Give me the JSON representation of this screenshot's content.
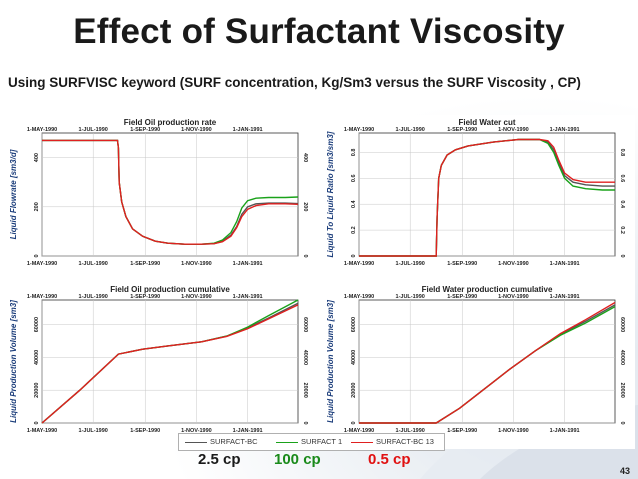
{
  "slide": {
    "title": "Effect of Surfactant Viscosity",
    "subtitle": "Using SURFVISC keyword (SURF concentration, Kg/Sm3 versus the SURF Viscosity , CP)",
    "page_number": "43"
  },
  "legend": {
    "entries": [
      {
        "name": "SURFACT-BC",
        "color": "#555555"
      },
      {
        "name": "SURFACT 1",
        "color": "#1aa21a"
      },
      {
        "name": "SURFACT-BC 13",
        "color": "#e02020"
      }
    ]
  },
  "viscosity_labels": [
    {
      "text": "2.5 cp",
      "color": "#1a1a1a"
    },
    {
      "text": "100 cp",
      "color": "#1a8a1a"
    },
    {
      "text": "0.5 cp",
      "color": "#e01010"
    }
  ],
  "chart_data": [
    {
      "type": "line",
      "title": "Field Oil production rate",
      "ylabel": "Liquid Flowrate [sm3/d]",
      "x_ticks": [
        "1-MAY-1990",
        "1-JUL-1990",
        "1-SEP-1990",
        "1-NOV-1990",
        "1-JAN-1991"
      ],
      "x_tick_values": [
        0,
        61,
        123,
        184,
        245
      ],
      "xlim": [
        0,
        305
      ],
      "y_ticks": [
        "0",
        "200",
        "400"
      ],
      "y_tick_values": [
        0,
        200,
        400
      ],
      "ylim": [
        0,
        500
      ],
      "grid": true,
      "series": [
        {
          "name": "SURFACT-BC",
          "points": [
            [
              0,
              470
            ],
            [
              90,
              470
            ],
            [
              91,
              440
            ],
            [
              92,
              300
            ],
            [
              95,
              220
            ],
            [
              100,
              160
            ],
            [
              108,
              110
            ],
            [
              120,
              80
            ],
            [
              135,
              60
            ],
            [
              150,
              52
            ],
            [
              170,
              48
            ],
            [
              190,
              48
            ],
            [
              205,
              50
            ],
            [
              215,
              60
            ],
            [
              225,
              85
            ],
            [
              232,
              120
            ],
            [
              238,
              170
            ],
            [
              245,
              200
            ],
            [
              255,
              212
            ],
            [
              270,
              215
            ],
            [
              290,
              215
            ],
            [
              305,
              213
            ]
          ]
        },
        {
          "name": "SURFACT 1",
          "points": [
            [
              0,
              470
            ],
            [
              90,
              470
            ],
            [
              91,
              440
            ],
            [
              92,
              300
            ],
            [
              95,
              220
            ],
            [
              100,
              160
            ],
            [
              108,
              110
            ],
            [
              120,
              80
            ],
            [
              135,
              60
            ],
            [
              150,
              52
            ],
            [
              170,
              48
            ],
            [
              190,
              48
            ],
            [
              205,
              52
            ],
            [
              215,
              65
            ],
            [
              225,
              95
            ],
            [
              232,
              140
            ],
            [
              238,
              195
            ],
            [
              245,
              225
            ],
            [
              255,
              235
            ],
            [
              270,
              238
            ],
            [
              290,
              238
            ],
            [
              305,
              240
            ]
          ]
        },
        {
          "name": "SURFACT-BC 13",
          "points": [
            [
              0,
              470
            ],
            [
              90,
              470
            ],
            [
              91,
              440
            ],
            [
              92,
              300
            ],
            [
              95,
              220
            ],
            [
              100,
              160
            ],
            [
              108,
              110
            ],
            [
              120,
              80
            ],
            [
              135,
              60
            ],
            [
              150,
              52
            ],
            [
              170,
              48
            ],
            [
              190,
              48
            ],
            [
              205,
              50
            ],
            [
              215,
              58
            ],
            [
              225,
              80
            ],
            [
              232,
              115
            ],
            [
              238,
              160
            ],
            [
              245,
              190
            ],
            [
              255,
              205
            ],
            [
              270,
              212
            ],
            [
              290,
              212
            ],
            [
              305,
              210
            ]
          ]
        }
      ]
    },
    {
      "type": "line",
      "title": "Field Water cut",
      "ylabel": "Liquid To Liquid Ratio [sm3/sm3]",
      "x_ticks": [
        "1-MAY-1990",
        "1-JUL-1990",
        "1-SEP-1990",
        "1-NOV-1990",
        "1-JAN-1991"
      ],
      "x_tick_values": [
        0,
        61,
        123,
        184,
        245
      ],
      "xlim": [
        0,
        305
      ],
      "y_ticks": [
        "0",
        "0.2",
        "0.4",
        "0.6",
        "0.8"
      ],
      "y_tick_values": [
        0,
        0.2,
        0.4,
        0.6,
        0.8
      ],
      "ylim": [
        0,
        0.95
      ],
      "grid": true,
      "series": [
        {
          "name": "SURFACT-BC",
          "points": [
            [
              0,
              0
            ],
            [
              92,
              0
            ],
            [
              93,
              0.3
            ],
            [
              95,
              0.6
            ],
            [
              98,
              0.7
            ],
            [
              105,
              0.78
            ],
            [
              115,
              0.82
            ],
            [
              130,
              0.85
            ],
            [
              160,
              0.88
            ],
            [
              190,
              0.9
            ],
            [
              215,
              0.9
            ],
            [
              225,
              0.88
            ],
            [
              232,
              0.82
            ],
            [
              238,
              0.72
            ],
            [
              245,
              0.62
            ],
            [
              255,
              0.57
            ],
            [
              270,
              0.55
            ],
            [
              290,
              0.54
            ],
            [
              305,
              0.54
            ]
          ]
        },
        {
          "name": "SURFACT 1",
          "points": [
            [
              0,
              0
            ],
            [
              92,
              0
            ],
            [
              93,
              0.3
            ],
            [
              95,
              0.6
            ],
            [
              98,
              0.7
            ],
            [
              105,
              0.78
            ],
            [
              115,
              0.82
            ],
            [
              130,
              0.85
            ],
            [
              160,
              0.88
            ],
            [
              190,
              0.9
            ],
            [
              215,
              0.9
            ],
            [
              225,
              0.87
            ],
            [
              232,
              0.8
            ],
            [
              238,
              0.7
            ],
            [
              245,
              0.6
            ],
            [
              255,
              0.54
            ],
            [
              270,
              0.52
            ],
            [
              290,
              0.51
            ],
            [
              305,
              0.51
            ]
          ]
        },
        {
          "name": "SURFACT-BC 13",
          "points": [
            [
              0,
              0
            ],
            [
              92,
              0
            ],
            [
              93,
              0.3
            ],
            [
              95,
              0.6
            ],
            [
              98,
              0.7
            ],
            [
              105,
              0.78
            ],
            [
              115,
              0.82
            ],
            [
              130,
              0.85
            ],
            [
              160,
              0.88
            ],
            [
              190,
              0.9
            ],
            [
              215,
              0.9
            ],
            [
              225,
              0.89
            ],
            [
              232,
              0.84
            ],
            [
              238,
              0.74
            ],
            [
              245,
              0.64
            ],
            [
              255,
              0.59
            ],
            [
              270,
              0.57
            ],
            [
              290,
              0.57
            ],
            [
              305,
              0.57
            ]
          ]
        }
      ]
    },
    {
      "type": "line",
      "title": "Field Oil production cumulative",
      "ylabel": "Liquid Production Volume [sm3]",
      "x_ticks": [
        "1-MAY-1990",
        "1-JUL-1990",
        "1-SEP-1990",
        "1-NOV-1990",
        "1-JAN-1991"
      ],
      "x_tick_values": [
        0,
        61,
        123,
        184,
        245
      ],
      "xlim": [
        0,
        305
      ],
      "y_ticks": [
        "0",
        "20000",
        "40000",
        "60000"
      ],
      "y_tick_values": [
        0,
        20000,
        40000,
        60000
      ],
      "ylim": [
        0,
        75000
      ],
      "grid": true,
      "series": [
        {
          "name": "SURFACT-BC",
          "points": [
            [
              0,
              0
            ],
            [
              45,
              20000
            ],
            [
              91,
              42000
            ],
            [
              120,
              45000
            ],
            [
              150,
              47000
            ],
            [
              190,
              49500
            ],
            [
              220,
              53000
            ],
            [
              245,
              58000
            ],
            [
              270,
              64000
            ],
            [
              305,
              73000
            ]
          ]
        },
        {
          "name": "SURFACT 1",
          "points": [
            [
              0,
              0
            ],
            [
              45,
              20000
            ],
            [
              91,
              42000
            ],
            [
              120,
              45000
            ],
            [
              150,
              47000
            ],
            [
              190,
              49500
            ],
            [
              220,
              53000
            ],
            [
              245,
              58500
            ],
            [
              270,
              65500
            ],
            [
              305,
              75000
            ]
          ]
        },
        {
          "name": "SURFACT-BC 13",
          "points": [
            [
              0,
              0
            ],
            [
              45,
              20000
            ],
            [
              91,
              42000
            ],
            [
              120,
              45000
            ],
            [
              150,
              47000
            ],
            [
              190,
              49500
            ],
            [
              220,
              52800
            ],
            [
              245,
              57500
            ],
            [
              270,
              63500
            ],
            [
              305,
              72000
            ]
          ]
        }
      ]
    },
    {
      "type": "line",
      "title": "Field Water production cumulative",
      "ylabel": "Liquid Production Volume [sm3]",
      "x_ticks": [
        "1-MAY-1990",
        "1-JUL-1990",
        "1-SEP-1990",
        "1-NOV-1990",
        "1-JAN-1991"
      ],
      "x_tick_values": [
        0,
        61,
        123,
        184,
        245
      ],
      "xlim": [
        0,
        305
      ],
      "y_ticks": [
        "0",
        "20000",
        "40000",
        "60000"
      ],
      "y_tick_values": [
        0,
        20000,
        40000,
        60000
      ],
      "ylim": [
        0,
        75000
      ],
      "grid": true,
      "series": [
        {
          "name": "SURFACT-BC",
          "points": [
            [
              0,
              0
            ],
            [
              92,
              0
            ],
            [
              120,
              9000
            ],
            [
              150,
              21000
            ],
            [
              180,
              33000
            ],
            [
              210,
              44000
            ],
            [
              240,
              54000
            ],
            [
              270,
              62000
            ],
            [
              305,
              72000
            ]
          ]
        },
        {
          "name": "SURFACT 1",
          "points": [
            [
              0,
              0
            ],
            [
              92,
              0
            ],
            [
              120,
              9000
            ],
            [
              150,
              21000
            ],
            [
              180,
              33000
            ],
            [
              210,
              44000
            ],
            [
              240,
              53500
            ],
            [
              270,
              61000
            ],
            [
              305,
              71000
            ]
          ]
        },
        {
          "name": "SURFACT-BC 13",
          "points": [
            [
              0,
              0
            ],
            [
              92,
              0
            ],
            [
              120,
              9000
            ],
            [
              150,
              21000
            ],
            [
              180,
              33000
            ],
            [
              210,
              44000
            ],
            [
              240,
              54500
            ],
            [
              270,
              63000
            ],
            [
              305,
              73500
            ]
          ]
        }
      ]
    }
  ]
}
